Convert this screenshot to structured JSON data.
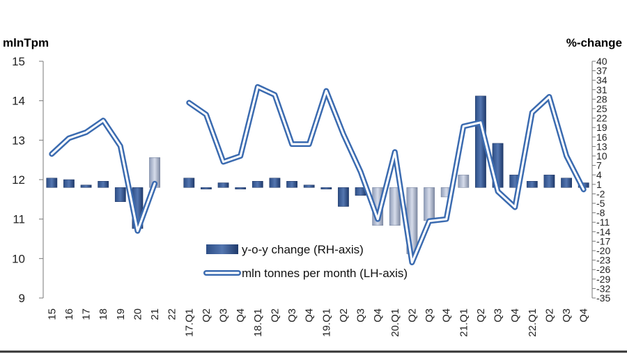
{
  "chart_data": {
    "type": "bar-line-combo",
    "left_axis_title": "mlnTpm",
    "right_axis_title": "%-change",
    "left_ticks": [
      "15",
      "14",
      "13",
      "12",
      "11",
      "10",
      "9"
    ],
    "right_ticks": [
      "40",
      "37",
      "34",
      "31",
      "28",
      "25",
      "22",
      "19",
      "16",
      "13",
      "10",
      "7",
      "4",
      "1",
      "-2",
      "-5",
      "-8",
      "-11",
      "-14",
      "-17",
      "-20",
      "-23",
      "-26",
      "-29",
      "-32",
      "-35"
    ],
    "ylim_left": [
      9,
      15
    ],
    "ylim_right": [
      -35,
      40
    ],
    "categories": [
      "15",
      "16",
      "17",
      "18",
      "19",
      "20",
      "21",
      "22",
      "17.Q1",
      "Q2",
      "Q3",
      "Q4",
      "18.Q1",
      "Q2",
      "Q3",
      "Q4",
      "19.Q1",
      "Q2",
      "Q3",
      "Q4",
      "20.Q1",
      "Q2",
      "Q3",
      "Q4",
      "21.Q1",
      "Q2",
      "Q3",
      "Q4",
      "22.Q1",
      "Q2",
      "Q3",
      "Q4"
    ],
    "series": [
      {
        "name": "y-o-y change (RH-axis)",
        "kind": "bar",
        "axis": "right",
        "values": [
          3,
          2.5,
          0.8,
          2,
          -4.5,
          -13,
          9.5,
          null,
          3,
          -0.5,
          1.5,
          -0.5,
          2,
          3,
          2,
          0.8,
          -0.5,
          -6,
          -2.5,
          -12,
          -12,
          -21,
          -10.5,
          -3,
          4,
          29,
          14,
          4,
          2,
          4,
          3,
          1.5
        ]
      },
      {
        "name": "mln tonnes per month (LH-axis)",
        "kind": "line",
        "axis": "left",
        "values": [
          12.65,
          13.05,
          13.2,
          13.5,
          12.85,
          10.7,
          11.9,
          null,
          13.95,
          13.65,
          12.45,
          12.6,
          14.35,
          14.15,
          12.9,
          12.9,
          14.25,
          13.15,
          12.2,
          11.0,
          12.7,
          9.9,
          10.95,
          11.0,
          13.35,
          13.45,
          11.7,
          11.3,
          13.7,
          14.1,
          12.6,
          11.75
        ]
      }
    ],
    "legend_position": "bottom-center",
    "grid": false
  }
}
